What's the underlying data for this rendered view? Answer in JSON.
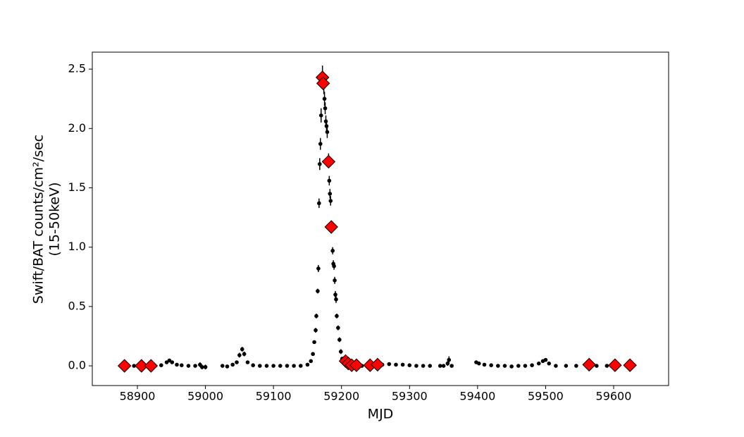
{
  "chart_data": {
    "type": "scatter",
    "x_label": "MJD",
    "y_label": [
      "Swift/BAT counts/cm²/sec",
      "(15-50keV)"
    ],
    "xlim": [
      58833.7,
      59680.8
    ],
    "ylim": [
      -0.166,
      2.643
    ],
    "xticks": [
      58900,
      59000,
      59100,
      59200,
      59300,
      59400,
      59500,
      59600
    ],
    "yticks": [
      {
        "value": 0,
        "label": "0.0"
      },
      0.5,
      {
        "value": 1,
        "label": "1.0"
      },
      1.5,
      {
        "value": 2,
        "label": "2.0"
      },
      2.5
    ],
    "series": [
      {
        "color": "#000000",
        "marker": "circle",
        "x": [
          58885,
          58895,
          58905,
          58915,
          58925,
          58935,
          58943,
          58947,
          58951,
          58958,
          58965,
          58975,
          58985,
          58992,
          58995,
          59000,
          59025,
          59032,
          59040,
          59046,
          59050,
          59054,
          59057,
          59062,
          59070,
          59080,
          59090,
          59100,
          59110,
          59120,
          59130,
          59140,
          59150,
          59155,
          59158,
          59160,
          59162,
          59163,
          59165,
          59166,
          59167,
          59168,
          59169,
          59170,
          59172,
          59174,
          59175,
          59176,
          59177,
          59178,
          59179,
          59181,
          59182,
          59183,
          59184,
          59187,
          59188,
          59189,
          59190,
          59191,
          59192,
          59193,
          59195,
          59197,
          59199,
          59201,
          59205,
          59210,
          59220,
          59230,
          59240,
          59250,
          59260,
          59270,
          59280,
          59290,
          59300,
          59310,
          59320,
          59330,
          59345,
          59350,
          59356,
          59358,
          59362,
          59398,
          59402,
          59410,
          59420,
          59430,
          59440,
          59450,
          59460,
          59470,
          59480,
          59490,
          59496,
          59500,
          59505,
          59515,
          59530,
          59545,
          59560,
          59575,
          59590,
          59600
        ],
        "values": [
          0,
          0,
          0,
          0,
          0,
          0.005,
          0.03,
          0.045,
          0.03,
          0.01,
          0.005,
          0,
          0,
          0.01,
          -0.01,
          -0.01,
          0,
          -0.005,
          0.01,
          0.03,
          0.09,
          0.14,
          0.1,
          0.03,
          0.005,
          0,
          0,
          0,
          0,
          0,
          0,
          0,
          0.01,
          0.04,
          0.1,
          0.2,
          0.3,
          0.42,
          0.63,
          0.82,
          1.37,
          1.7,
          1.87,
          2.11,
          2.46,
          2.35,
          2.25,
          2.17,
          2.06,
          2.02,
          1.97,
          1.74,
          1.56,
          1.45,
          1.39,
          0.97,
          0.86,
          0.84,
          0.72,
          0.6,
          0.56,
          0.42,
          0.32,
          0.22,
          0.12,
          0.06,
          0.03,
          0.01,
          0,
          0,
          0.005,
          0.01,
          0.01,
          0.015,
          0.01,
          0.01,
          0.005,
          0,
          0,
          0,
          0,
          0,
          0.02,
          0.05,
          0,
          0.03,
          0.02,
          0.01,
          0.005,
          0,
          0,
          -0.005,
          0,
          0,
          0.005,
          0.02,
          0.04,
          0.05,
          0.02,
          0,
          0,
          0,
          0,
          0,
          0,
          0
        ],
        "errors": [
          0.01,
          0.01,
          0.01,
          0.01,
          0.01,
          0.01,
          0.01,
          0.01,
          0.01,
          0.01,
          0.01,
          0.01,
          0.01,
          0.02,
          0.02,
          0.02,
          0.01,
          0.01,
          0.01,
          0.01,
          0.02,
          0.02,
          0.02,
          0.01,
          0.01,
          0.01,
          0.01,
          0.01,
          0.01,
          0.01,
          0.01,
          0.01,
          0.01,
          0.01,
          0.01,
          0.01,
          0.02,
          0.02,
          0.02,
          0.03,
          0.04,
          0.05,
          0.05,
          0.06,
          0.07,
          0.06,
          0.06,
          0.05,
          0.05,
          0.05,
          0.05,
          0.05,
          0.04,
          0.04,
          0.04,
          0.03,
          0.03,
          0.03,
          0.03,
          0.03,
          0.03,
          0.02,
          0.02,
          0.02,
          0.02,
          0.01,
          0.01,
          0.01,
          0.01,
          0.01,
          0.01,
          0.01,
          0.01,
          0.01,
          0.01,
          0.01,
          0.01,
          0.01,
          0.01,
          0.01,
          0.01,
          0.01,
          0.02,
          0.03,
          0.01,
          0.01,
          0.01,
          0.01,
          0.01,
          0.01,
          0.01,
          0.01,
          0.01,
          0.01,
          0.01,
          0.01,
          0.01,
          0.01,
          0.01,
          0.01,
          0.01,
          0.01,
          0.01,
          0.01,
          0.01,
          0.01
        ]
      },
      {
        "color": "#ff0000",
        "marker": "diamond",
        "x": [
          58881,
          58906,
          58920,
          59172,
          59173,
          59181,
          59185,
          59206,
          59210,
          59215,
          59222,
          59242,
          59253,
          59564,
          59602,
          59624
        ],
        "values": [
          0,
          0,
          0,
          2.43,
          2.38,
          1.72,
          1.17,
          0.04,
          0.02,
          0.005,
          0.005,
          0.005,
          0.01,
          0.01,
          0.005,
          0.005
        ]
      }
    ]
  }
}
